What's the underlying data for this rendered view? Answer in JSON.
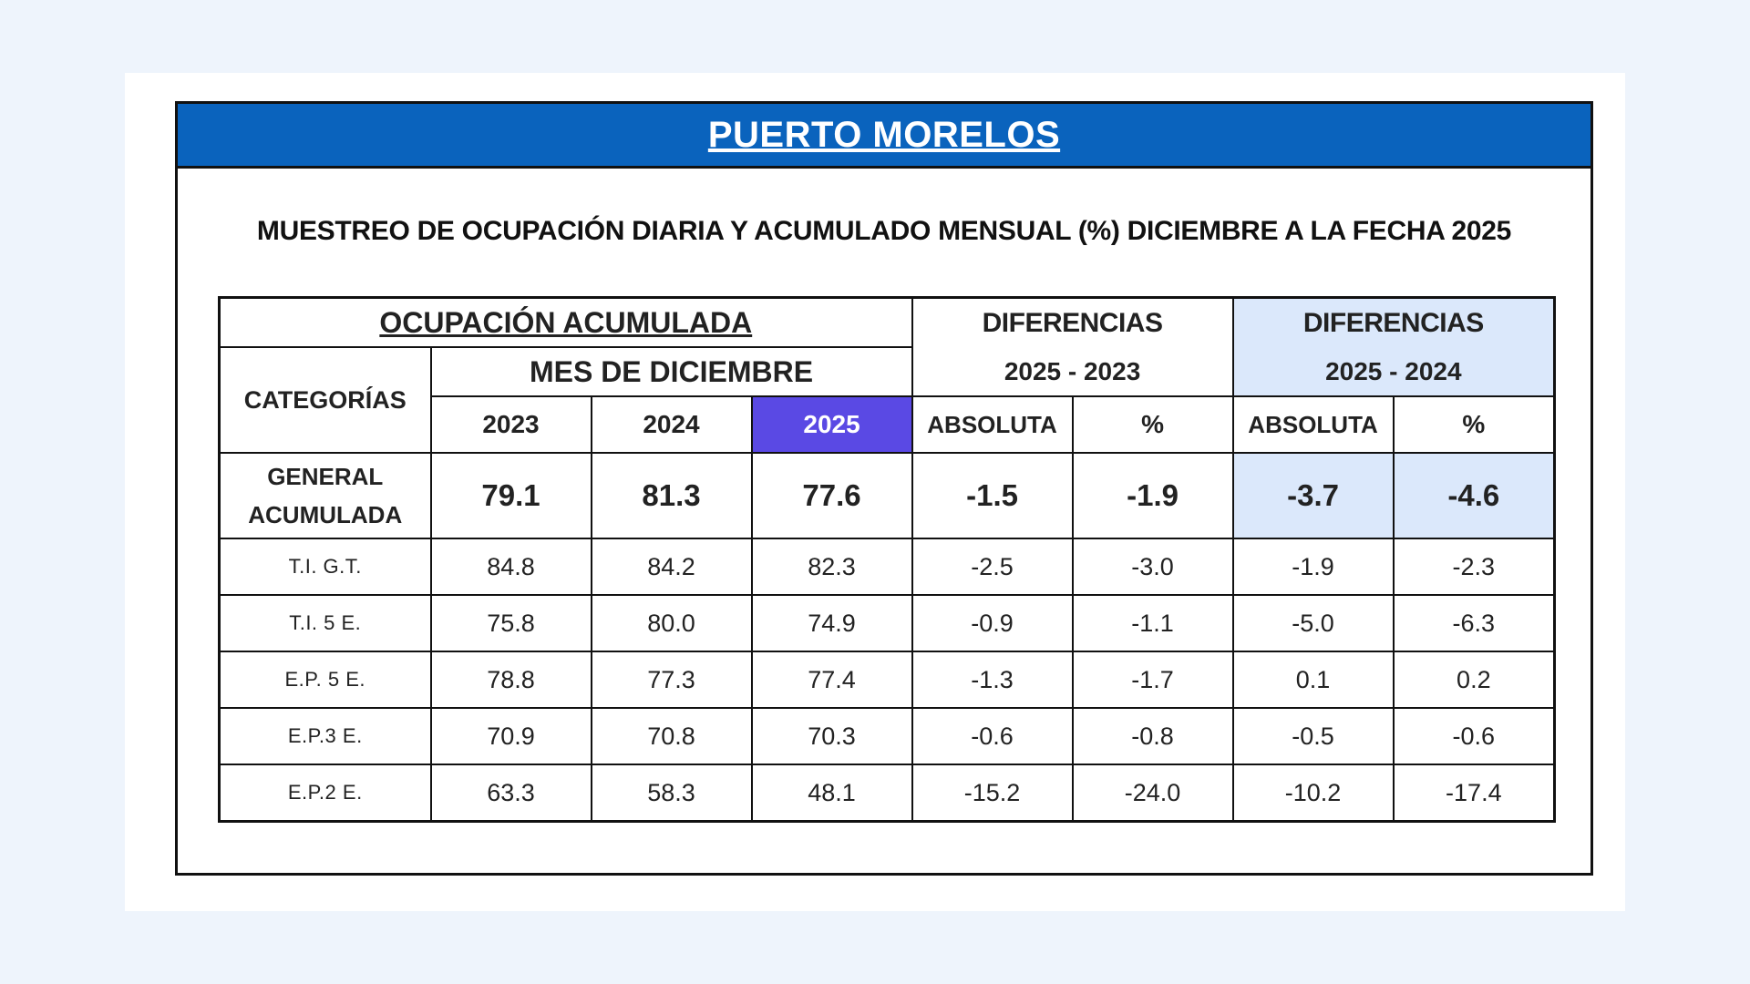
{
  "banner_title": "PUERTO MORELOS",
  "subtitle": "MUESTREO DE OCUPACIÓN DIARIA Y ACUMULADO MENSUAL (%) DICIEMBRE A LA FECHA 2025",
  "table": {
    "group_header": "OCUPACIÓN ACUMULADA",
    "categories_header": "CATEGORÍAS",
    "month_header": "MES DE DICIEMBRE",
    "diff1_title": "DIFERENCIAS",
    "diff1_sub": "2025 - 2023",
    "diff2_title": "DIFERENCIAS",
    "diff2_sub": "2025 - 2024",
    "years": [
      "2023",
      "2024",
      "2025"
    ],
    "abs_label_1": "ABSOLUTA",
    "pct_label_1": "%",
    "abs_label_2": "ABSOLUTA",
    "pct_label_2": "%",
    "general": {
      "label_line1": "GENERAL",
      "label_line2": "ACUMULADA",
      "values": [
        "79.1",
        "81.3",
        "77.6",
        "-1.5",
        "-1.9",
        "-3.7",
        "-4.6"
      ]
    },
    "rows": [
      {
        "category": "T.I. G.T.",
        "values": [
          "84.8",
          "84.2",
          "82.3",
          "-2.5",
          "-3.0",
          "-1.9",
          "-2.3"
        ]
      },
      {
        "category": "T.I. 5 E.",
        "values": [
          "75.8",
          "80.0",
          "74.9",
          "-0.9",
          "-1.1",
          "-5.0",
          "-6.3"
        ]
      },
      {
        "category": "E.P. 5 E.",
        "values": [
          "78.8",
          "77.3",
          "77.4",
          "-1.3",
          "-1.7",
          "0.1",
          "0.2"
        ]
      },
      {
        "category": "E.P.3 E.",
        "values": [
          "70.9",
          "70.8",
          "70.3",
          "-0.6",
          "-0.8",
          "-0.5",
          "-0.6"
        ]
      },
      {
        "category": "E.P.2 E.",
        "values": [
          "63.3",
          "58.3",
          "48.1",
          "-15.2",
          "-24.0",
          "-10.2",
          "-17.4"
        ]
      }
    ]
  },
  "colors": {
    "banner": "#0a63bd",
    "highlight_2025": "#5a49e4",
    "diff2_bg": "#dbe8fb",
    "page_bg": "#eef4fc"
  }
}
